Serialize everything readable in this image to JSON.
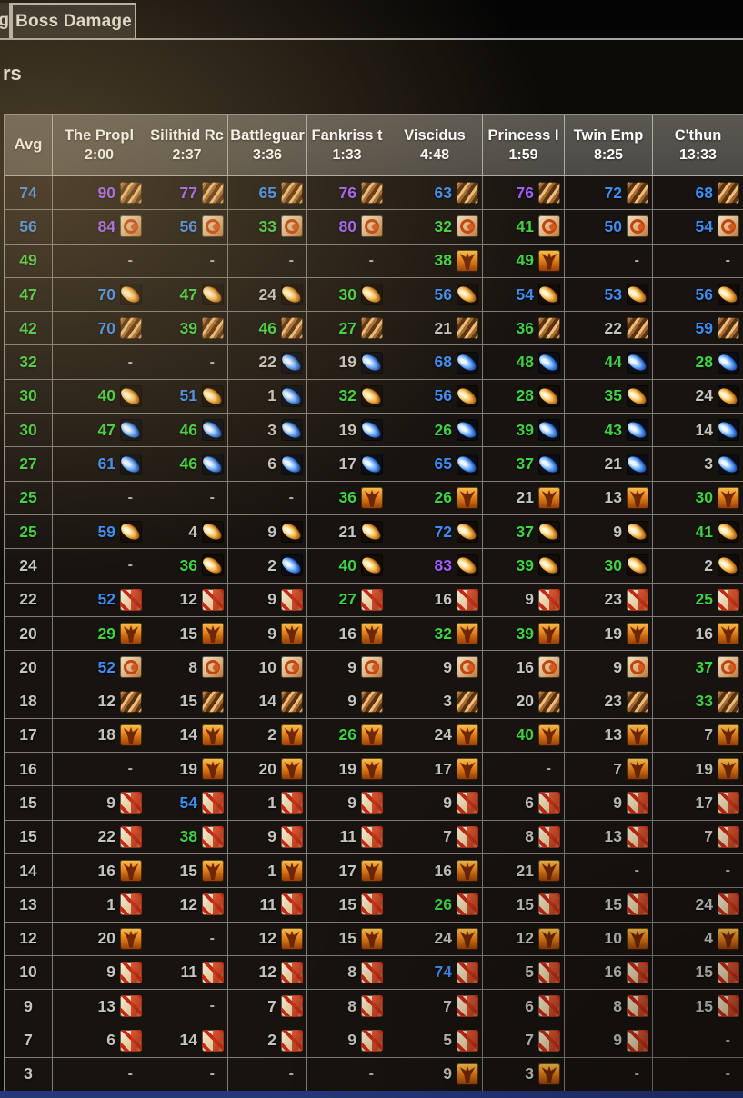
{
  "tab_bar": {
    "partial_tab_label": "g",
    "active_tab": "Boss Damage"
  },
  "heading": {
    "partial_text": "rs"
  },
  "percentile_colors": {
    "epic": "#a05eff",
    "rare": "#3f8df2",
    "uncommon": "#40d342",
    "common": "#c6c4bf"
  },
  "icons": {
    "warrior": "tan-striped-square",
    "ring": "cream-square-red-ring",
    "gold-comet": "gold-comet-on-black",
    "blue-comet": "blue-comet-on-black",
    "phoenix": "orange-phoenix-bird",
    "red-slash": "cream-square-red-slashes"
  },
  "table": {
    "avg_header": "Avg",
    "bosses": [
      {
        "name": "The Propl",
        "time": "2:00"
      },
      {
        "name": "Silithid Rc",
        "time": "2:37"
      },
      {
        "name": "Battleguar",
        "time": "3:36"
      },
      {
        "name": "Fankriss t",
        "time": "1:33"
      },
      {
        "name": "Viscidus",
        "time": "4:48"
      },
      {
        "name": "Princess I",
        "time": "1:59"
      },
      {
        "name": "Twin Emp",
        "time": "8:25"
      },
      {
        "name": "C'thun",
        "time": "13:33"
      }
    ],
    "rows": [
      {
        "avg": 74,
        "cells": [
          {
            "v": 90,
            "i": "warrior"
          },
          {
            "v": 77,
            "i": "warrior"
          },
          {
            "v": 65,
            "i": "warrior"
          },
          {
            "v": 76,
            "i": "warrior"
          },
          {
            "v": 63,
            "i": "warrior"
          },
          {
            "v": 76,
            "i": "warrior"
          },
          {
            "v": 72,
            "i": "warrior"
          },
          {
            "v": 68,
            "i": "warrior"
          }
        ]
      },
      {
        "avg": 56,
        "cells": [
          {
            "v": 84,
            "i": "ring"
          },
          {
            "v": 56,
            "i": "ring"
          },
          {
            "v": 33,
            "i": "ring"
          },
          {
            "v": 80,
            "i": "ring"
          },
          {
            "v": 32,
            "i": "ring"
          },
          {
            "v": 41,
            "i": "ring"
          },
          {
            "v": 50,
            "i": "ring"
          },
          {
            "v": 54,
            "i": "ring"
          }
        ]
      },
      {
        "avg": 49,
        "cells": [
          {
            "v": "-"
          },
          {
            "v": "-"
          },
          {
            "v": "-"
          },
          {
            "v": "-"
          },
          {
            "v": 38,
            "i": "phoenix"
          },
          {
            "v": 49,
            "i": "phoenix"
          },
          {
            "v": "-"
          },
          {
            "v": "-"
          }
        ]
      },
      {
        "avg": 47,
        "cells": [
          {
            "v": 70,
            "i": "gold-comet"
          },
          {
            "v": 47,
            "i": "gold-comet"
          },
          {
            "v": 24,
            "i": "gold-comet"
          },
          {
            "v": 30,
            "i": "gold-comet"
          },
          {
            "v": 56,
            "i": "gold-comet"
          },
          {
            "v": 54,
            "i": "gold-comet"
          },
          {
            "v": 53,
            "i": "gold-comet"
          },
          {
            "v": 56,
            "i": "gold-comet"
          }
        ]
      },
      {
        "avg": 42,
        "cells": [
          {
            "v": 70,
            "i": "warrior"
          },
          {
            "v": 39,
            "i": "warrior"
          },
          {
            "v": 46,
            "i": "warrior"
          },
          {
            "v": 27,
            "i": "warrior"
          },
          {
            "v": 21,
            "i": "warrior"
          },
          {
            "v": 36,
            "i": "warrior"
          },
          {
            "v": 22,
            "i": "warrior"
          },
          {
            "v": 59,
            "i": "warrior"
          }
        ]
      },
      {
        "avg": 32,
        "cells": [
          {
            "v": "-"
          },
          {
            "v": "-"
          },
          {
            "v": 22,
            "i": "blue-comet"
          },
          {
            "v": 19,
            "i": "blue-comet"
          },
          {
            "v": 68,
            "i": "blue-comet"
          },
          {
            "v": 48,
            "i": "blue-comet"
          },
          {
            "v": 44,
            "i": "blue-comet"
          },
          {
            "v": 28,
            "i": "blue-comet"
          }
        ]
      },
      {
        "avg": 30,
        "cells": [
          {
            "v": 40,
            "i": "gold-comet"
          },
          {
            "v": 51,
            "i": "gold-comet"
          },
          {
            "v": 1,
            "i": "blue-comet"
          },
          {
            "v": 32,
            "i": "gold-comet"
          },
          {
            "v": 56,
            "i": "gold-comet"
          },
          {
            "v": 28,
            "i": "gold-comet"
          },
          {
            "v": 35,
            "i": "gold-comet"
          },
          {
            "v": 24,
            "i": "gold-comet"
          }
        ]
      },
      {
        "avg": 30,
        "cells": [
          {
            "v": 47,
            "i": "blue-comet"
          },
          {
            "v": 46,
            "i": "blue-comet"
          },
          {
            "v": 3,
            "i": "blue-comet"
          },
          {
            "v": 19,
            "i": "blue-comet"
          },
          {
            "v": 26,
            "i": "blue-comet"
          },
          {
            "v": 39,
            "i": "blue-comet"
          },
          {
            "v": 43,
            "i": "blue-comet"
          },
          {
            "v": 14,
            "i": "blue-comet"
          }
        ]
      },
      {
        "avg": 27,
        "cells": [
          {
            "v": 61,
            "i": "blue-comet"
          },
          {
            "v": 46,
            "i": "blue-comet"
          },
          {
            "v": 6,
            "i": "blue-comet"
          },
          {
            "v": 17,
            "i": "blue-comet"
          },
          {
            "v": 65,
            "i": "blue-comet"
          },
          {
            "v": 37,
            "i": "blue-comet"
          },
          {
            "v": 21,
            "i": "blue-comet"
          },
          {
            "v": 3,
            "i": "blue-comet"
          }
        ]
      },
      {
        "avg": 25,
        "cells": [
          {
            "v": "-"
          },
          {
            "v": "-"
          },
          {
            "v": "-"
          },
          {
            "v": 36,
            "i": "phoenix"
          },
          {
            "v": 26,
            "i": "phoenix"
          },
          {
            "v": 21,
            "i": "phoenix"
          },
          {
            "v": 13,
            "i": "phoenix"
          },
          {
            "v": 30,
            "i": "phoenix"
          }
        ]
      },
      {
        "avg": 25,
        "cells": [
          {
            "v": 59,
            "i": "gold-comet"
          },
          {
            "v": 4,
            "i": "gold-comet"
          },
          {
            "v": 9,
            "i": "gold-comet"
          },
          {
            "v": 21,
            "i": "gold-comet"
          },
          {
            "v": 72,
            "i": "gold-comet"
          },
          {
            "v": 37,
            "i": "gold-comet"
          },
          {
            "v": 9,
            "i": "gold-comet"
          },
          {
            "v": 41,
            "i": "gold-comet"
          }
        ]
      },
      {
        "avg": 24,
        "cells": [
          {
            "v": "-"
          },
          {
            "v": 36,
            "i": "gold-comet"
          },
          {
            "v": 2,
            "i": "blue-comet"
          },
          {
            "v": 40,
            "i": "gold-comet"
          },
          {
            "v": 83,
            "i": "gold-comet"
          },
          {
            "v": 39,
            "i": "gold-comet"
          },
          {
            "v": 30,
            "i": "gold-comet"
          },
          {
            "v": 2,
            "i": "gold-comet"
          }
        ]
      },
      {
        "avg": 22,
        "cells": [
          {
            "v": 52,
            "i": "red-slash"
          },
          {
            "v": 12,
            "i": "red-slash"
          },
          {
            "v": 9,
            "i": "red-slash"
          },
          {
            "v": 27,
            "i": "red-slash"
          },
          {
            "v": 16,
            "i": "red-slash"
          },
          {
            "v": 9,
            "i": "red-slash"
          },
          {
            "v": 23,
            "i": "red-slash"
          },
          {
            "v": 25,
            "i": "red-slash"
          }
        ]
      },
      {
        "avg": 20,
        "cells": [
          {
            "v": 29,
            "i": "phoenix"
          },
          {
            "v": 15,
            "i": "phoenix"
          },
          {
            "v": 9,
            "i": "phoenix"
          },
          {
            "v": 16,
            "i": "phoenix"
          },
          {
            "v": 32,
            "i": "phoenix"
          },
          {
            "v": 39,
            "i": "phoenix"
          },
          {
            "v": 19,
            "i": "phoenix"
          },
          {
            "v": 16,
            "i": "phoenix"
          }
        ]
      },
      {
        "avg": 20,
        "cells": [
          {
            "v": 52,
            "i": "ring"
          },
          {
            "v": 8,
            "i": "ring"
          },
          {
            "v": 10,
            "i": "ring"
          },
          {
            "v": 9,
            "i": "ring"
          },
          {
            "v": 9,
            "i": "ring"
          },
          {
            "v": 16,
            "i": "ring"
          },
          {
            "v": 9,
            "i": "ring"
          },
          {
            "v": 37,
            "i": "ring"
          }
        ]
      },
      {
        "avg": 18,
        "cells": [
          {
            "v": 12,
            "i": "warrior"
          },
          {
            "v": 15,
            "i": "warrior"
          },
          {
            "v": 14,
            "i": "warrior"
          },
          {
            "v": 9,
            "i": "warrior"
          },
          {
            "v": 3,
            "i": "warrior"
          },
          {
            "v": 20,
            "i": "warrior"
          },
          {
            "v": 23,
            "i": "warrior"
          },
          {
            "v": 33,
            "i": "warrior"
          }
        ]
      },
      {
        "avg": 17,
        "cells": [
          {
            "v": 18,
            "i": "phoenix"
          },
          {
            "v": 14,
            "i": "phoenix"
          },
          {
            "v": 2,
            "i": "phoenix"
          },
          {
            "v": 26,
            "i": "phoenix"
          },
          {
            "v": 24,
            "i": "phoenix"
          },
          {
            "v": 40,
            "i": "phoenix"
          },
          {
            "v": 13,
            "i": "phoenix"
          },
          {
            "v": 7,
            "i": "phoenix"
          }
        ]
      },
      {
        "avg": 16,
        "cells": [
          {
            "v": "-"
          },
          {
            "v": 19,
            "i": "phoenix"
          },
          {
            "v": 20,
            "i": "phoenix"
          },
          {
            "v": 19,
            "i": "phoenix"
          },
          {
            "v": 17,
            "i": "phoenix"
          },
          {
            "v": "-"
          },
          {
            "v": 7,
            "i": "phoenix"
          },
          {
            "v": 19,
            "i": "phoenix"
          }
        ]
      },
      {
        "avg": 15,
        "cells": [
          {
            "v": 9,
            "i": "red-slash"
          },
          {
            "v": 54,
            "i": "red-slash"
          },
          {
            "v": 1,
            "i": "red-slash"
          },
          {
            "v": 9,
            "i": "red-slash"
          },
          {
            "v": 9,
            "i": "red-slash"
          },
          {
            "v": 6,
            "i": "red-slash"
          },
          {
            "v": 9,
            "i": "red-slash"
          },
          {
            "v": 17,
            "i": "red-slash"
          }
        ]
      },
      {
        "avg": 15,
        "cells": [
          {
            "v": 22,
            "i": "red-slash"
          },
          {
            "v": 38,
            "i": "red-slash"
          },
          {
            "v": 9,
            "i": "red-slash"
          },
          {
            "v": 11,
            "i": "red-slash"
          },
          {
            "v": 7,
            "i": "red-slash"
          },
          {
            "v": 8,
            "i": "red-slash"
          },
          {
            "v": 13,
            "i": "red-slash"
          },
          {
            "v": 7,
            "i": "red-slash"
          }
        ]
      },
      {
        "avg": 14,
        "cells": [
          {
            "v": 16,
            "i": "phoenix"
          },
          {
            "v": 15,
            "i": "phoenix"
          },
          {
            "v": 1,
            "i": "phoenix"
          },
          {
            "v": 17,
            "i": "phoenix"
          },
          {
            "v": 16,
            "i": "phoenix"
          },
          {
            "v": 21,
            "i": "phoenix"
          },
          {
            "v": "-"
          },
          {
            "v": "-"
          }
        ]
      },
      {
        "avg": 13,
        "cells": [
          {
            "v": 1,
            "i": "red-slash"
          },
          {
            "v": 12,
            "i": "red-slash"
          },
          {
            "v": 11,
            "i": "red-slash"
          },
          {
            "v": 15,
            "i": "red-slash"
          },
          {
            "v": 26,
            "i": "red-slash"
          },
          {
            "v": 15,
            "i": "red-slash"
          },
          {
            "v": 15,
            "i": "red-slash"
          },
          {
            "v": 24,
            "i": "red-slash"
          }
        ]
      },
      {
        "avg": 12,
        "cells": [
          {
            "v": 20,
            "i": "phoenix"
          },
          {
            "v": "-"
          },
          {
            "v": 12,
            "i": "phoenix"
          },
          {
            "v": 15,
            "i": "phoenix"
          },
          {
            "v": 24,
            "i": "phoenix"
          },
          {
            "v": 12,
            "i": "phoenix"
          },
          {
            "v": 10,
            "i": "phoenix"
          },
          {
            "v": 4,
            "i": "phoenix"
          }
        ]
      },
      {
        "avg": 10,
        "cells": [
          {
            "v": 9,
            "i": "red-slash"
          },
          {
            "v": 11,
            "i": "red-slash"
          },
          {
            "v": 12,
            "i": "red-slash"
          },
          {
            "v": 8,
            "i": "red-slash"
          },
          {
            "v": 74,
            "i": "red-slash"
          },
          {
            "v": 5,
            "i": "red-slash"
          },
          {
            "v": 16,
            "i": "red-slash"
          },
          {
            "v": 15,
            "i": "red-slash"
          }
        ]
      },
      {
        "avg": 9,
        "cells": [
          {
            "v": 13,
            "i": "red-slash"
          },
          {
            "v": "-"
          },
          {
            "v": 7,
            "i": "red-slash"
          },
          {
            "v": 8,
            "i": "red-slash"
          },
          {
            "v": 7,
            "i": "red-slash"
          },
          {
            "v": 6,
            "i": "red-slash"
          },
          {
            "v": 8,
            "i": "red-slash"
          },
          {
            "v": 15,
            "i": "red-slash"
          }
        ]
      },
      {
        "avg": 7,
        "cells": [
          {
            "v": 6,
            "i": "red-slash"
          },
          {
            "v": 14,
            "i": "red-slash"
          },
          {
            "v": 2,
            "i": "red-slash"
          },
          {
            "v": 9,
            "i": "red-slash"
          },
          {
            "v": 5,
            "i": "red-slash"
          },
          {
            "v": 7,
            "i": "red-slash"
          },
          {
            "v": 9,
            "i": "red-slash"
          },
          {
            "v": "-"
          }
        ]
      },
      {
        "avg": 3,
        "cells": [
          {
            "v": "-"
          },
          {
            "v": "-"
          },
          {
            "v": "-"
          },
          {
            "v": "-"
          },
          {
            "v": 9,
            "i": "phoenix"
          },
          {
            "v": 3,
            "i": "phoenix"
          },
          {
            "v": "-"
          },
          {
            "v": "-"
          }
        ]
      }
    ]
  }
}
